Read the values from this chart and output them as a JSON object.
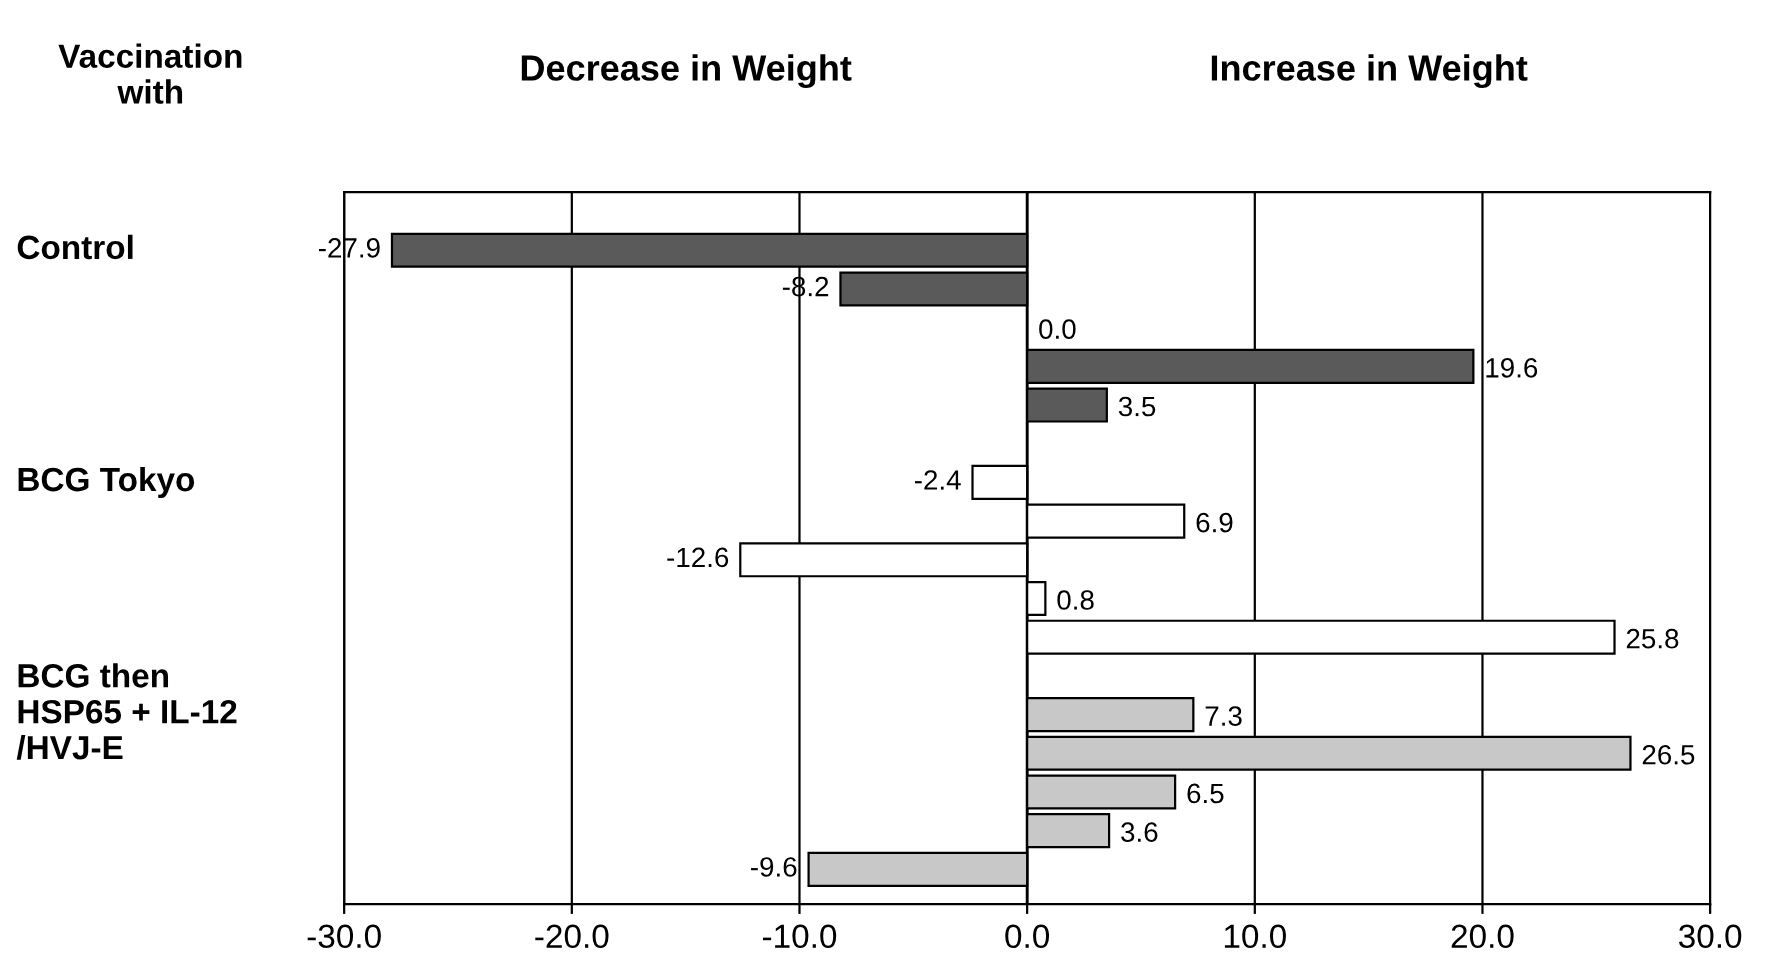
{
  "chart_data": {
    "type": "bar",
    "orientation": "horizontal",
    "ylabel": "Vaccination\nwith",
    "annotations": [
      "Decrease in Weight",
      "Increase in Weight"
    ],
    "categories": [
      "Control",
      null,
      null,
      null,
      null,
      null,
      "BCG Tokyo",
      null,
      null,
      null,
      null,
      null,
      "BCG then\nHSP65 + IL-12\n/HVJ-E",
      null,
      null,
      null,
      null
    ],
    "series": [
      {
        "color": "#5a5a5a",
        "values": [
          -27.9,
          -8.2,
          0.0,
          19.6,
          3.5,
          null,
          null,
          null,
          null,
          null,
          null,
          null,
          null,
          null,
          null,
          null,
          null
        ],
        "value_labels": [
          "-27.9",
          "-8.2",
          "0.0",
          "19.6",
          "3.5",
          null,
          null,
          null,
          null,
          null,
          null,
          null,
          null,
          null,
          null,
          null,
          null
        ]
      },
      {
        "color": "#ffffff",
        "values": [
          null,
          null,
          null,
          null,
          null,
          null,
          -2.4,
          6.9,
          -12.6,
          0.8,
          25.8,
          null,
          null,
          null,
          null,
          null,
          null
        ],
        "value_labels": [
          null,
          null,
          null,
          null,
          null,
          null,
          "-2.4",
          "6.9",
          "-12.6",
          "0.8",
          "25.8",
          null,
          null,
          null,
          null,
          null,
          null
        ]
      },
      {
        "color": "#c8c8c8",
        "values": [
          null,
          null,
          null,
          null,
          null,
          null,
          null,
          null,
          null,
          null,
          null,
          null,
          7.3,
          26.5,
          6.5,
          3.6,
          -9.6
        ],
        "value_labels": [
          null,
          null,
          null,
          null,
          null,
          null,
          null,
          null,
          null,
          null,
          null,
          null,
          "7.3",
          "26.5",
          "6.5",
          "3.6",
          "-9.6"
        ]
      }
    ],
    "xlim": [
      -30,
      30
    ],
    "xticks": [
      {
        "value": -30,
        "label": "-30.0"
      },
      {
        "value": -20,
        "label": "-20.0"
      },
      {
        "value": -10,
        "label": "-10.0"
      },
      {
        "value": 0,
        "label": "0.0"
      },
      {
        "value": 10,
        "label": "10.0"
      },
      {
        "value": 20,
        "label": "20.0"
      },
      {
        "value": 30,
        "label": "30.0"
      }
    ],
    "grid": "x",
    "legend": false
  }
}
